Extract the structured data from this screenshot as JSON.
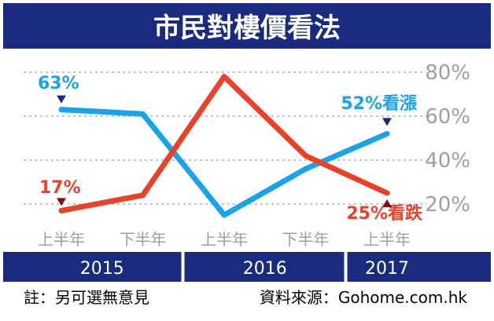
{
  "chart_data": {
    "type": "line",
    "title": "市民對樓價看法",
    "categories": [
      "上半年",
      "下半年",
      "上半年",
      "下半年",
      "上半年"
    ],
    "years": [
      {
        "label": "2015",
        "span": [
          0,
          1
        ]
      },
      {
        "label": "2016",
        "span": [
          2,
          3
        ]
      },
      {
        "label": "2017",
        "span": [
          4,
          4
        ]
      }
    ],
    "ylim": [
      0,
      80
    ],
    "yticks": [
      {
        "value": 20,
        "label": "20%"
      },
      {
        "value": 40,
        "label": "40%"
      },
      {
        "value": 60,
        "label": "60%"
      },
      {
        "value": 80,
        "label": "80%"
      }
    ],
    "grid": true,
    "series": [
      {
        "key": "up",
        "color": "#1aa3e8",
        "values": [
          63,
          61,
          15,
          36,
          52
        ]
      },
      {
        "key": "down",
        "color": "#e8422a",
        "values": [
          17,
          24,
          78,
          42,
          25
        ]
      }
    ],
    "annotations": [
      {
        "text": "63%",
        "color": "#1aa3e8",
        "at": [
          0,
          63
        ]
      },
      {
        "text": "17%",
        "color": "#e8422a",
        "at": [
          0,
          17
        ]
      },
      {
        "text": "52%看漲",
        "color": "#1aa3e8",
        "at": [
          4,
          52
        ]
      },
      {
        "text": "25%看跌",
        "color": "#e8422a",
        "at": [
          4,
          25
        ]
      }
    ]
  },
  "footer": {
    "note": "註：另可選無意見",
    "source": "資料來源：Gohome.com.hk"
  },
  "colors": {
    "banner": "#1a2a7c",
    "grid": "#9aa0a8",
    "tick_text": "#9aa0a8",
    "up": "#1aa3e8",
    "down": "#e8422a"
  }
}
